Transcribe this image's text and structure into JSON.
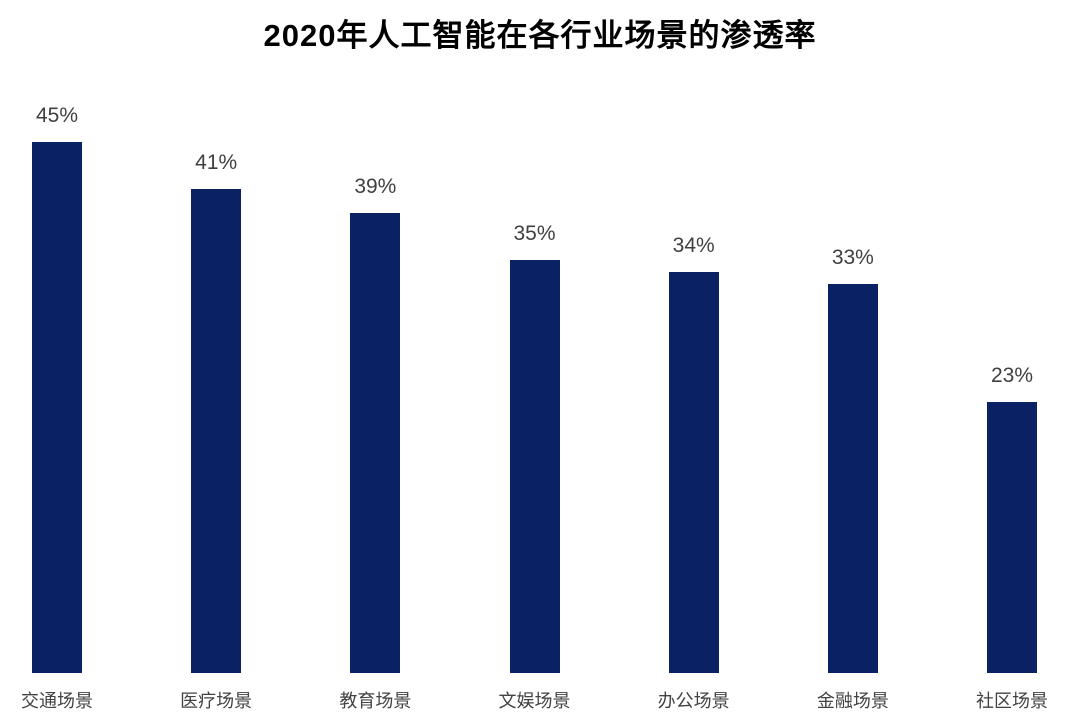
{
  "chart_data": {
    "type": "bar",
    "title": "2020年人工智能在各行业场景的渗透率",
    "categories": [
      "交通场景",
      "医疗场景",
      "教育场景",
      "文娱场景",
      "办公场景",
      "金融场景",
      "社区场景"
    ],
    "values": [
      45,
      41,
      39,
      35,
      34,
      33,
      23
    ],
    "value_labels": [
      "45%",
      "41%",
      "39%",
      "35%",
      "34%",
      "33%",
      "23%"
    ],
    "unit": "%",
    "ylim": [
      0,
      50
    ],
    "grid": false,
    "legend": "none",
    "axis_lines": "none",
    "bar_color": "#0a2264",
    "value_label_color": "#404040",
    "category_label_color": "#424242",
    "title_color": "#000000",
    "background_color": "#ffffff"
  }
}
